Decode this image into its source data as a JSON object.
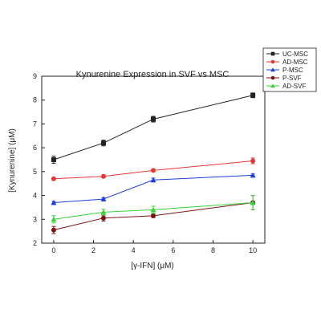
{
  "chart_data": {
    "type": "line",
    "title": "Kynurenine Expression in SVF vs MSC",
    "xlabel": "[γ-IFN] (μM)",
    "ylabel": "[Kynurenine] (μM)",
    "xlim": [
      -0.6,
      10.6
    ],
    "ylim": [
      2,
      9
    ],
    "xticks": [
      "0",
      "2",
      "4",
      "6",
      "8",
      "10"
    ],
    "yticks": [
      "2",
      "3",
      "4",
      "5",
      "6",
      "7",
      "8",
      "9"
    ],
    "x": [
      0,
      2.5,
      5,
      10
    ],
    "legend_position": "top-right",
    "series": [
      {
        "name": "UC-MSC",
        "color": "#222222",
        "marker": "square",
        "values": [
          5.5,
          6.2,
          7.2,
          8.2
        ],
        "errors": [
          0.15,
          0.12,
          0.12,
          0.1
        ]
      },
      {
        "name": "AD-MSC",
        "color": "#e53935",
        "marker": "circle",
        "values": [
          4.7,
          4.8,
          5.05,
          5.45
        ],
        "errors": [
          0.05,
          0.05,
          0.05,
          0.12
        ]
      },
      {
        "name": "P-MSC",
        "color": "#1e3fd8",
        "marker": "triangle",
        "values": [
          3.7,
          3.85,
          4.65,
          4.85
        ],
        "errors": [
          0.05,
          0.06,
          0.08,
          0.05
        ]
      },
      {
        "name": "P-SVF",
        "color": "#7b1414",
        "marker": "circle",
        "values": [
          2.55,
          3.05,
          3.15,
          3.7
        ],
        "errors": [
          0.15,
          0.12,
          0.08,
          0.3
        ]
      },
      {
        "name": "AD-SVF",
        "color": "#3ad13a",
        "marker": "triangle",
        "values": [
          3.0,
          3.3,
          3.4,
          3.7
        ],
        "errors": [
          0.15,
          0.12,
          0.15,
          0.3
        ]
      }
    ]
  }
}
